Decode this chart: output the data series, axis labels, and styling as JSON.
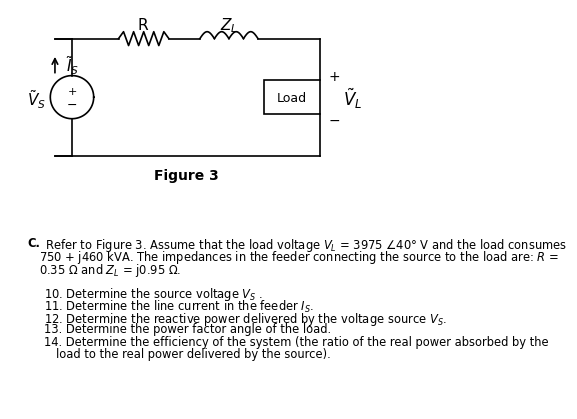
{
  "bg_color": "#ffffff",
  "fig_caption": "Figure 3",
  "circuit": {
    "src_label": "$\\tilde{V}_S$",
    "cur_label": "$\\tilde{I}_S$",
    "R_label": "R",
    "ZL_label": "$Z_L$",
    "load_label": "Load",
    "VL_label": "$\\tilde{V}_L$",
    "plus": "+",
    "minus": "−"
  },
  "lines": [
    "C.  Refer to Figure 3. Assume that the load voltage $V_L$ = 3975 ≀40° V and the load consumes",
    "    750 + j460 kVA. The impedances in the feeder connecting the source to the load are: $R$ =",
    "    0.35 Ω and $Z_L$ = j0.95 Ω.",
    "",
    "    10. Determine the source voltage $V_S$ .",
    "    11. Determine the line current in the feeder $I_S$.",
    "    12. Determine the reactive power delivered by the voltage source $V_S$.",
    "    13. Determine the power factor angle of the load.",
    "    14. Determine the efficiency of the system (the ratio of the real power absorbed by the",
    "          load to the real power delivered by the source)."
  ]
}
